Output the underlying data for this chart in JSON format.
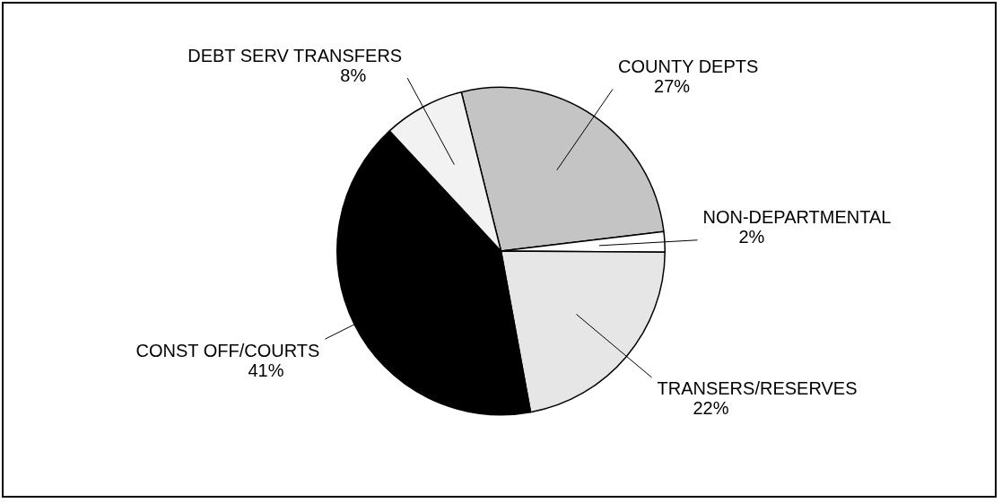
{
  "chart_data": {
    "type": "pie",
    "categories": [
      "COUNTY DEPTS",
      "NON-DEPARTMENTAL",
      "TRANSERS/RESERVES",
      "CONST OFF/COURTS",
      "DEBT SERV TRANSFERS"
    ],
    "values": [
      27,
      2,
      22,
      41,
      8
    ],
    "value_labels": [
      "27%",
      "2%",
      "22%",
      "41%",
      "8%"
    ],
    "colors": [
      "#c4c4c4",
      "#ffffff",
      "#e6e6e6",
      "#000000",
      "#f2f2f2"
    ],
    "legend": false
  }
}
